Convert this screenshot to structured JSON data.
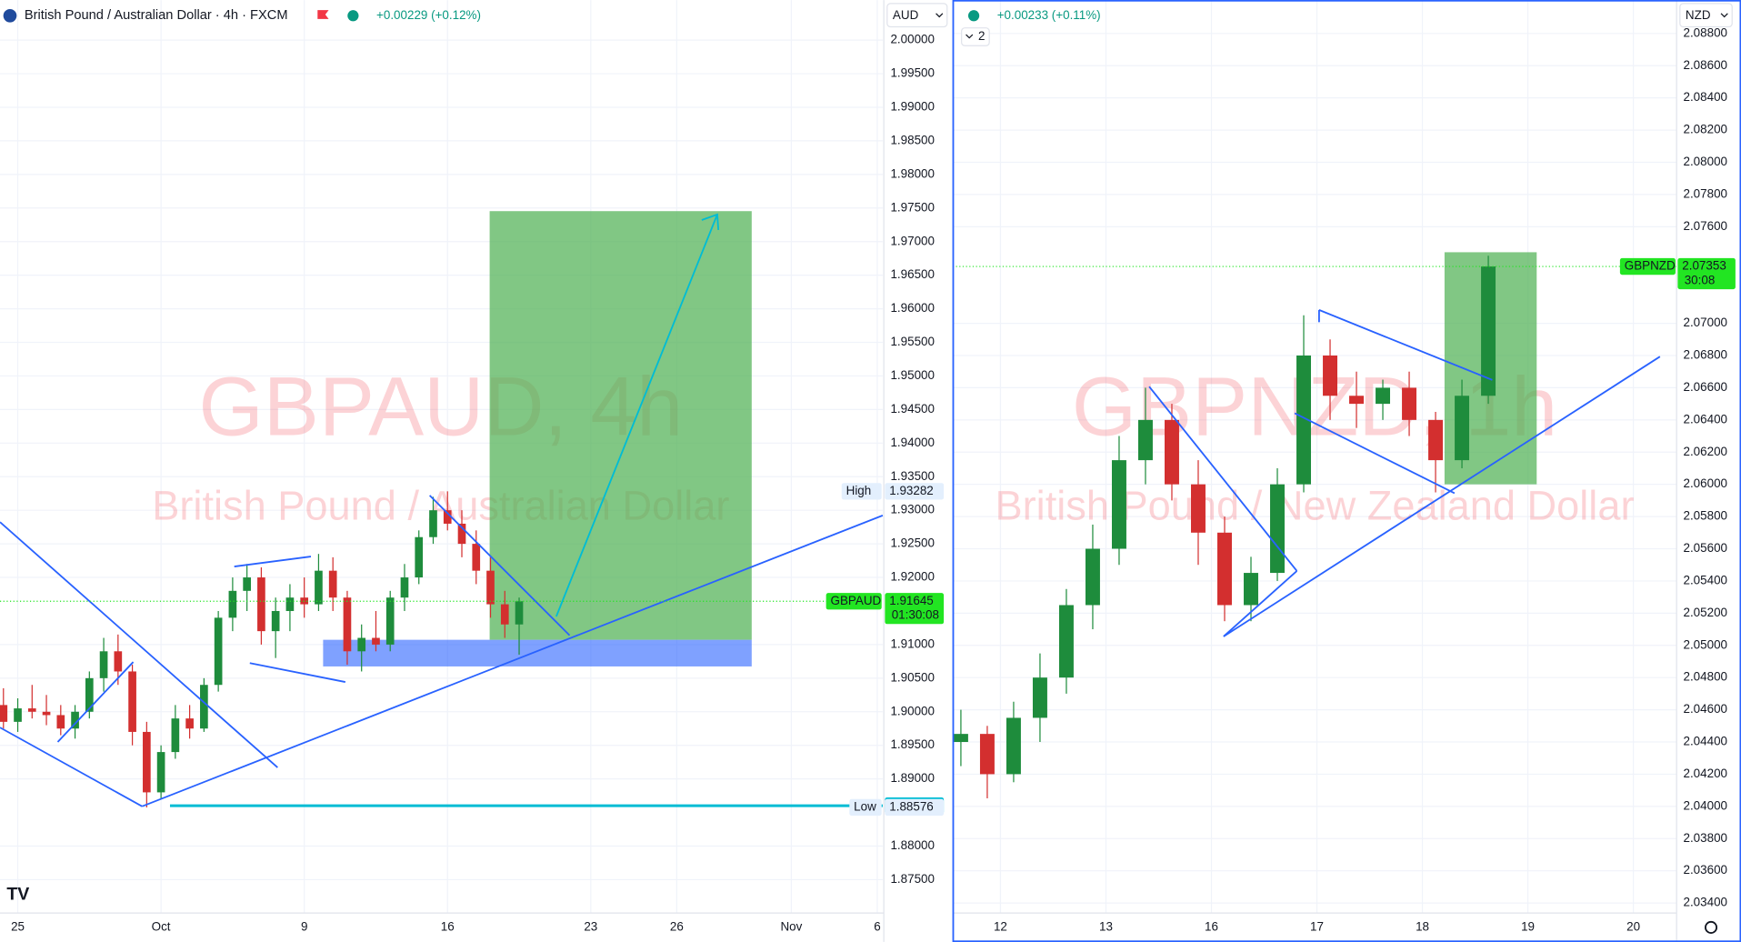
{
  "chart_data": [
    {
      "type": "candlestick",
      "title": "British Pound / Australian Dollar · 4h · FXCM",
      "change": "+0.00229 (+0.12%)",
      "currency": "AUD",
      "watermark": "GBPAUD, 4h",
      "watermark_subtitle": "British Pound / Australian Dollar",
      "up_color": "#1e8c3c",
      "down_color": "#d32f2f",
      "grid": true,
      "x": [
        -0.5,
        0,
        0.5,
        1,
        1.5,
        2,
        2.5,
        3,
        3.5,
        4,
        4.5,
        5,
        5.5,
        6,
        6.5,
        7,
        7.5,
        8,
        8.5,
        9,
        9.5,
        10,
        10.5,
        11,
        11.5,
        12,
        12.5,
        13,
        13.5,
        14,
        14.5,
        15,
        15.5,
        16,
        16.5,
        17,
        17.5
      ],
      "open": [
        1.901,
        1.8985,
        1.9005,
        1.9,
        1.8995,
        1.8975,
        1.9,
        1.905,
        1.909,
        1.906,
        1.897,
        1.888,
        1.894,
        1.899,
        1.8975,
        1.904,
        1.914,
        1.918,
        1.92,
        1.912,
        1.915,
        1.917,
        1.916,
        1.921,
        1.917,
        1.909,
        1.911,
        1.91,
        1.917,
        1.92,
        1.926,
        1.93,
        1.928,
        1.925,
        1.921,
        1.916,
        1.913
      ],
      "high": [
        1.9035,
        1.902,
        1.904,
        1.9025,
        1.901,
        1.901,
        1.906,
        1.911,
        1.9115,
        1.907,
        1.8985,
        1.895,
        1.901,
        1.901,
        1.905,
        1.915,
        1.92,
        1.922,
        1.9215,
        1.917,
        1.919,
        1.92,
        1.9235,
        1.923,
        1.918,
        1.913,
        1.915,
        1.918,
        1.922,
        1.927,
        1.932,
        1.93282,
        1.93,
        1.927,
        1.923,
        1.918,
        1.917
      ],
      "low": [
        1.8975,
        1.897,
        1.899,
        1.898,
        1.8965,
        1.896,
        1.899,
        1.903,
        1.904,
        1.895,
        1.88576,
        1.887,
        1.893,
        1.896,
        1.897,
        1.903,
        1.912,
        1.915,
        1.91,
        1.908,
        1.912,
        1.914,
        1.915,
        1.915,
        1.907,
        1.906,
        1.909,
        1.909,
        1.915,
        1.919,
        1.925,
        1.927,
        1.923,
        1.919,
        1.914,
        1.911,
        1.9085
      ],
      "close": [
        1.8985,
        1.9005,
        1.9,
        1.8995,
        1.8975,
        1.9,
        1.905,
        1.909,
        1.906,
        1.897,
        1.888,
        1.894,
        1.899,
        1.8975,
        1.904,
        1.914,
        1.918,
        1.92,
        1.912,
        1.915,
        1.917,
        1.916,
        1.921,
        1.917,
        1.909,
        1.911,
        1.91,
        1.917,
        1.92,
        1.926,
        1.93,
        1.928,
        1.925,
        1.921,
        1.916,
        1.913,
        1.91645
      ],
      "xlim": [
        -0.62,
        30.19
      ],
      "xticks": [
        {
          "value": 0,
          "label": "25"
        },
        {
          "value": 5,
          "label": "Oct"
        },
        {
          "value": 10,
          "label": "9"
        },
        {
          "value": 15,
          "label": "16"
        },
        {
          "value": 20,
          "label": "23"
        },
        {
          "value": 23,
          "label": "26"
        },
        {
          "value": 27,
          "label": "Nov"
        },
        {
          "value": 30,
          "label": "6"
        }
      ],
      "ylim": [
        1.87004,
        2.00595
      ],
      "yticks": [
        {
          "value": 2.0,
          "label": "2.00000"
        },
        {
          "value": 1.995,
          "label": "1.99500"
        },
        {
          "value": 1.99,
          "label": "1.99000"
        },
        {
          "value": 1.985,
          "label": "1.98500"
        },
        {
          "value": 1.98,
          "label": "1.98000"
        },
        {
          "value": 1.975,
          "label": "1.97500"
        },
        {
          "value": 1.97,
          "label": "1.97000"
        },
        {
          "value": 1.965,
          "label": "1.96500"
        },
        {
          "value": 1.96,
          "label": "1.96000"
        },
        {
          "value": 1.955,
          "label": "1.95500"
        },
        {
          "value": 1.95,
          "label": "1.95000"
        },
        {
          "value": 1.945,
          "label": "1.94500"
        },
        {
          "value": 1.94,
          "label": "1.94000"
        },
        {
          "value": 1.935,
          "label": "1.93500"
        },
        {
          "value": 1.93,
          "label": "1.93000"
        },
        {
          "value": 1.925,
          "label": "1.92500"
        },
        {
          "value": 1.92,
          "label": "1.92000"
        },
        {
          "value": 1.91,
          "label": "1.91000"
        },
        {
          "value": 1.905,
          "label": "1.90500"
        },
        {
          "value": 1.9,
          "label": "1.90000"
        },
        {
          "value": 1.895,
          "label": "1.89500"
        },
        {
          "value": 1.89,
          "label": "1.89000"
        },
        {
          "value": 1.88,
          "label": "1.88000"
        },
        {
          "value": 1.875,
          "label": "1.87500"
        }
      ],
      "markers": [
        {
          "name": "High",
          "value": 1.93282,
          "color": "#e3effd"
        },
        {
          "name": "GBPAUD",
          "value": 1.91645,
          "countdown": "01:30:08",
          "color": "#22e522",
          "line": true
        },
        {
          "value": 1.88601,
          "color": "#00bcd4"
        },
        {
          "name": "Low",
          "value": 1.88576,
          "color": "#e3effd"
        }
      ]
    },
    {
      "type": "candlestick",
      "change": "+0.00233 (+0.11%)",
      "indicators": "2",
      "currency": "NZD",
      "watermark": "GBPNZD, 1h",
      "watermark_subtitle": "British Pound / New Zealand Dollar",
      "up_color": "#1e8c3c",
      "down_color": "#d32f2f",
      "grid": true,
      "x": [
        -0.375,
        -0.125,
        0.125,
        0.375,
        0.625,
        0.875,
        1.125,
        1.375,
        1.625,
        1.875,
        2.125,
        2.375,
        2.625,
        2.875,
        3.125,
        3.375,
        3.625,
        3.875,
        4.125,
        4.375,
        4.625
      ],
      "open": [
        2.044,
        2.0445,
        2.042,
        2.0455,
        2.048,
        2.0525,
        2.056,
        2.0615,
        2.064,
        2.06,
        2.057,
        2.0525,
        2.0545,
        2.06,
        2.068,
        2.0655,
        2.065,
        2.066,
        2.064,
        2.0615,
        2.0655
      ],
      "high": [
        2.046,
        2.045,
        2.0465,
        2.0495,
        2.0535,
        2.0575,
        2.063,
        2.066,
        2.065,
        2.0615,
        2.058,
        2.0555,
        2.061,
        2.0705,
        2.069,
        2.067,
        2.0665,
        2.067,
        2.0645,
        2.0665,
        2.0742
      ],
      "low": [
        2.0425,
        2.0405,
        2.0415,
        2.044,
        2.047,
        2.051,
        2.055,
        2.06,
        2.059,
        2.055,
        2.0515,
        2.0515,
        2.054,
        2.0595,
        2.064,
        2.0635,
        2.064,
        2.063,
        2.0595,
        2.061,
        2.065
      ],
      "close": [
        2.0445,
        2.042,
        2.0455,
        2.048,
        2.0525,
        2.056,
        2.0615,
        2.064,
        2.06,
        2.057,
        2.0525,
        2.0545,
        2.06,
        2.068,
        2.0655,
        2.065,
        2.066,
        2.064,
        2.0615,
        2.0655,
        2.07353
      ],
      "xlim": [
        -0.453,
        6.41
      ],
      "xticks": [
        {
          "value": 0,
          "label": "12"
        },
        {
          "value": 1,
          "label": "13"
        },
        {
          "value": 2,
          "label": "16"
        },
        {
          "value": 3,
          "label": "17"
        },
        {
          "value": 4,
          "label": "18"
        },
        {
          "value": 5,
          "label": "19"
        },
        {
          "value": 6,
          "label": "20"
        }
      ],
      "ylim": [
        2.03338,
        2.09007
      ],
      "yticks": [
        {
          "value": 2.088,
          "label": "2.08800"
        },
        {
          "value": 2.086,
          "label": "2.08600"
        },
        {
          "value": 2.084,
          "label": "2.08400"
        },
        {
          "value": 2.082,
          "label": "2.08200"
        },
        {
          "value": 2.08,
          "label": "2.08000"
        },
        {
          "value": 2.078,
          "label": "2.07800"
        },
        {
          "value": 2.076,
          "label": "2.07600"
        },
        {
          "value": 2.07,
          "label": "2.07000"
        },
        {
          "value": 2.068,
          "label": "2.06800"
        },
        {
          "value": 2.066,
          "label": "2.06600"
        },
        {
          "value": 2.064,
          "label": "2.06400"
        },
        {
          "value": 2.062,
          "label": "2.06200"
        },
        {
          "value": 2.06,
          "label": "2.06000"
        },
        {
          "value": 2.058,
          "label": "2.05800"
        },
        {
          "value": 2.056,
          "label": "2.05600"
        },
        {
          "value": 2.054,
          "label": "2.05400"
        },
        {
          "value": 2.052,
          "label": "2.05200"
        },
        {
          "value": 2.05,
          "label": "2.05000"
        },
        {
          "value": 2.048,
          "label": "2.04800"
        },
        {
          "value": 2.046,
          "label": "2.04600"
        },
        {
          "value": 2.044,
          "label": "2.04400"
        },
        {
          "value": 2.042,
          "label": "2.04200"
        },
        {
          "value": 2.04,
          "label": "2.04000"
        },
        {
          "value": 2.038,
          "label": "2.03800"
        },
        {
          "value": 2.036,
          "label": "2.03600"
        },
        {
          "value": 2.034,
          "label": "2.03400"
        }
      ],
      "markers": [
        {
          "name": "GBPNZD",
          "value": 2.07353,
          "countdown": "30:08",
          "color": "#22e522",
          "line": true
        }
      ]
    }
  ]
}
